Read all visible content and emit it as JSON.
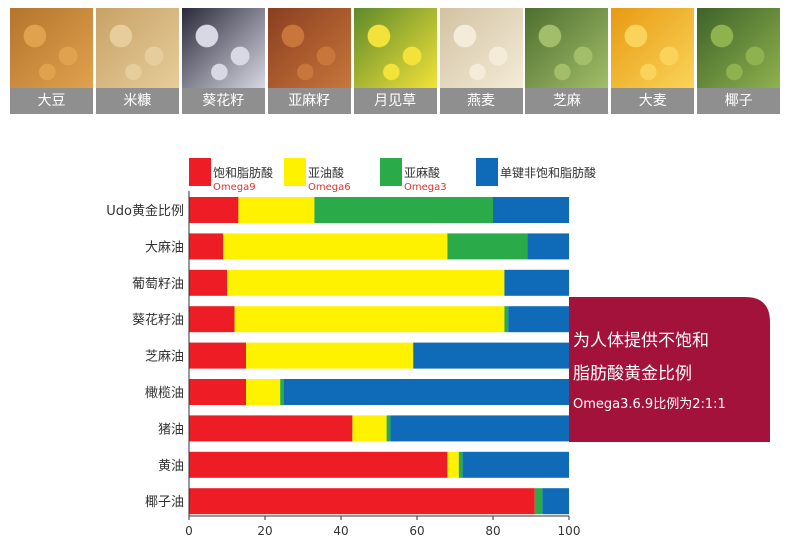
{
  "ingredients": [
    {
      "label": "大豆",
      "color": "#b5742c",
      "accent": "#e0a24e"
    },
    {
      "label": "米糠",
      "color": "#c8a266",
      "accent": "#e6cd9b"
    },
    {
      "label": "葵花籽",
      "color": "#2a2a3a",
      "accent": "#d8d8e4"
    },
    {
      "label": "亚麻籽",
      "color": "#8a3e1e",
      "accent": "#c8763c"
    },
    {
      "label": "月见草",
      "color": "#5e8a2a",
      "accent": "#f2e23a"
    },
    {
      "label": "燕麦",
      "color": "#d2c2a2",
      "accent": "#f4ecd8"
    },
    {
      "label": "芝麻",
      "color": "#4e6e2e",
      "accent": "#a2be6a"
    },
    {
      "label": "大麦",
      "color": "#e89a12",
      "accent": "#fad45a"
    },
    {
      "label": "椰子",
      "color": "#3e6228",
      "accent": "#8eb24e"
    }
  ],
  "chart_data": {
    "type": "bar",
    "orientation": "horizontal",
    "stacked": true,
    "legend_position": "top",
    "categories": [
      "Udo黄金比例",
      "大麻油",
      "葡萄籽油",
      "葵花籽油",
      "芝麻油",
      "橄榄油",
      "猪油",
      "黄油",
      "椰子油"
    ],
    "series": [
      {
        "name": "饱和脂肪酸",
        "sub": "Omega9",
        "color": "#ee1c24",
        "values": [
          13,
          9,
          10,
          12,
          15,
          15,
          43,
          68,
          91
        ]
      },
      {
        "name": "亚油酸",
        "sub": "Omega6",
        "color": "#fff200",
        "values": [
          20,
          59,
          73,
          71,
          44,
          9,
          9,
          3,
          0
        ]
      },
      {
        "name": "亚麻酸",
        "sub": "Omega3",
        "color": "#2aaa48",
        "values": [
          47,
          21,
          0,
          1,
          0,
          1,
          1,
          1,
          2
        ]
      },
      {
        "name": "单键非饱和脂肪酸",
        "sub": "",
        "color": "#0f6bb8",
        "values": [
          20,
          11,
          17,
          16,
          41,
          75,
          47,
          28,
          7
        ]
      }
    ],
    "xlim": [
      0,
      100
    ],
    "xticks": [
      0,
      20,
      40,
      60,
      80,
      100
    ],
    "grid": false
  },
  "callout": {
    "line1": "为人体提供不饱和",
    "line2": "脂肪酸黄金比例",
    "line3": "Omega3.6.9比例为2:1:1",
    "color": "#a3123b"
  }
}
